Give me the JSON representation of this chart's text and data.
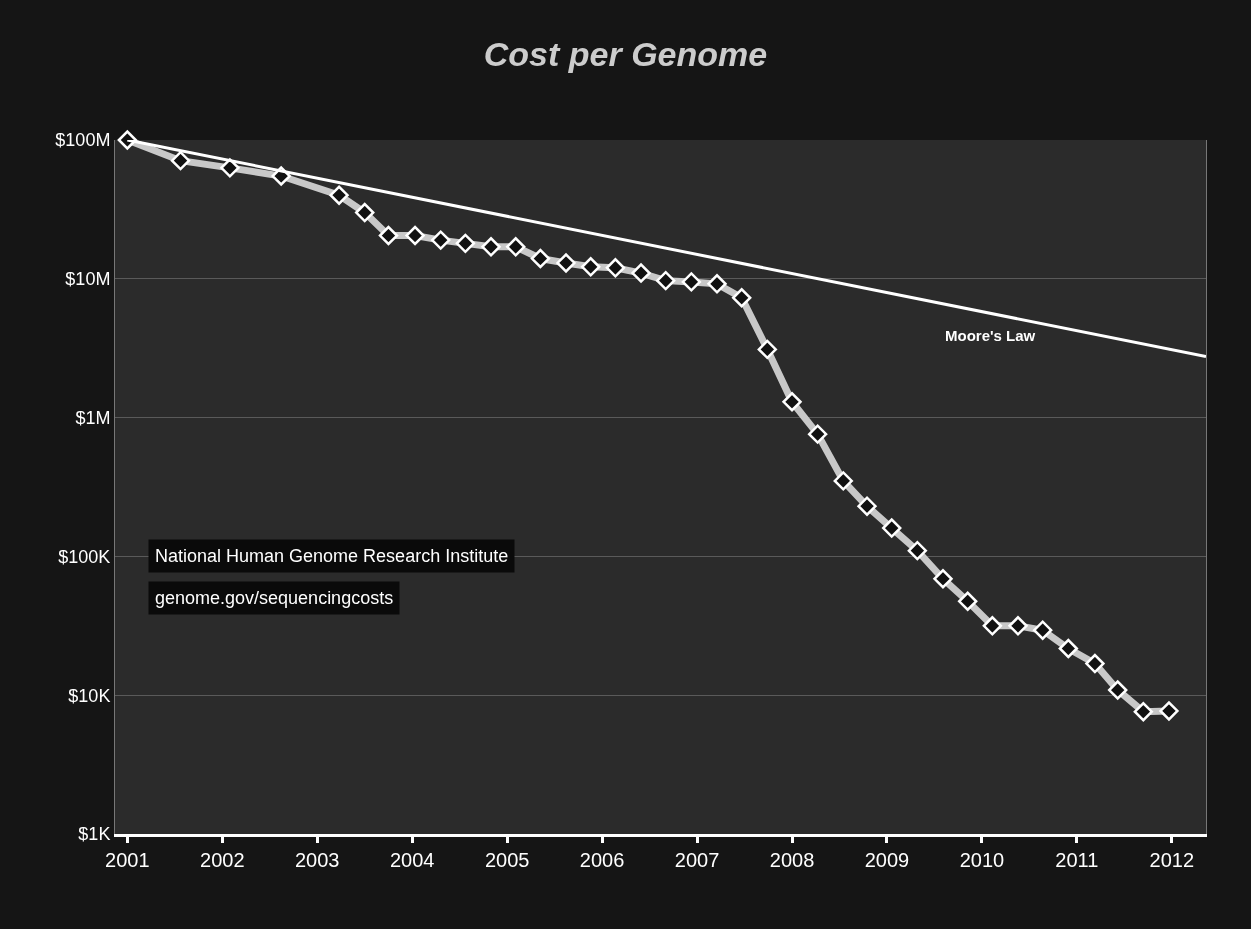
{
  "chart_data": {
    "type": "line",
    "title": "Cost per Genome",
    "log": "y",
    "grid": "y",
    "legend": false,
    "xlim": [
      2000.87,
      2012.36
    ],
    "xticks": [
      2001,
      2002,
      2003,
      2004,
      2005,
      2006,
      2007,
      2008,
      2009,
      2010,
      2011,
      2012
    ],
    "ylim": [
      1000,
      100000000
    ],
    "yticks": [
      {
        "value": 1000,
        "label": "$1K"
      },
      {
        "value": 10000,
        "label": "$10K"
      },
      {
        "value": 100000,
        "label": "$100K"
      },
      {
        "value": 1000000,
        "label": "$1M"
      },
      {
        "value": 10000000,
        "label": "$10M"
      },
      {
        "value": 100000000,
        "label": "$100M"
      }
    ],
    "series": [
      {
        "color": "#c8c8c8",
        "marker": "diamond",
        "x": [
          2001.0,
          2001.56,
          2002.08,
          2002.62,
          2003.23,
          2003.5,
          2003.75,
          2004.03,
          2004.3,
          2004.56,
          2004.83,
          2005.09,
          2005.35,
          2005.62,
          2005.88,
          2006.14,
          2006.41,
          2006.67,
          2006.94,
          2007.21,
          2007.47,
          2007.74,
          2008.0,
          2008.27,
          2008.54,
          2008.79,
          2009.05,
          2009.32,
          2009.59,
          2009.85,
          2010.11,
          2010.38,
          2010.64,
          2010.91,
          2011.19,
          2011.43,
          2011.7,
          2011.97
        ],
        "values": [
          100000000,
          71000000,
          63000000,
          55000000,
          40000000,
          30000000,
          20500000,
          20500000,
          19000000,
          18000000,
          17000000,
          17000000,
          14000000,
          13000000,
          12200000,
          12000000,
          11000000,
          9700000,
          9500000,
          9200000,
          7300000,
          3100000,
          1300000,
          760000,
          350000,
          230000,
          160000,
          110000,
          69000,
          47500,
          31600,
          31600,
          29400,
          21700,
          16900,
          10900,
          7600,
          7700
        ]
      },
      {
        "name": "Moore's Law",
        "color": "#ffffff",
        "x": [
          2001.0,
          2012.36
        ],
        "values": [
          100000000,
          2750000
        ]
      }
    ],
    "annotations": [
      "National Human Genome Research Institute",
      "genome.gov/sequencingcosts"
    ]
  }
}
